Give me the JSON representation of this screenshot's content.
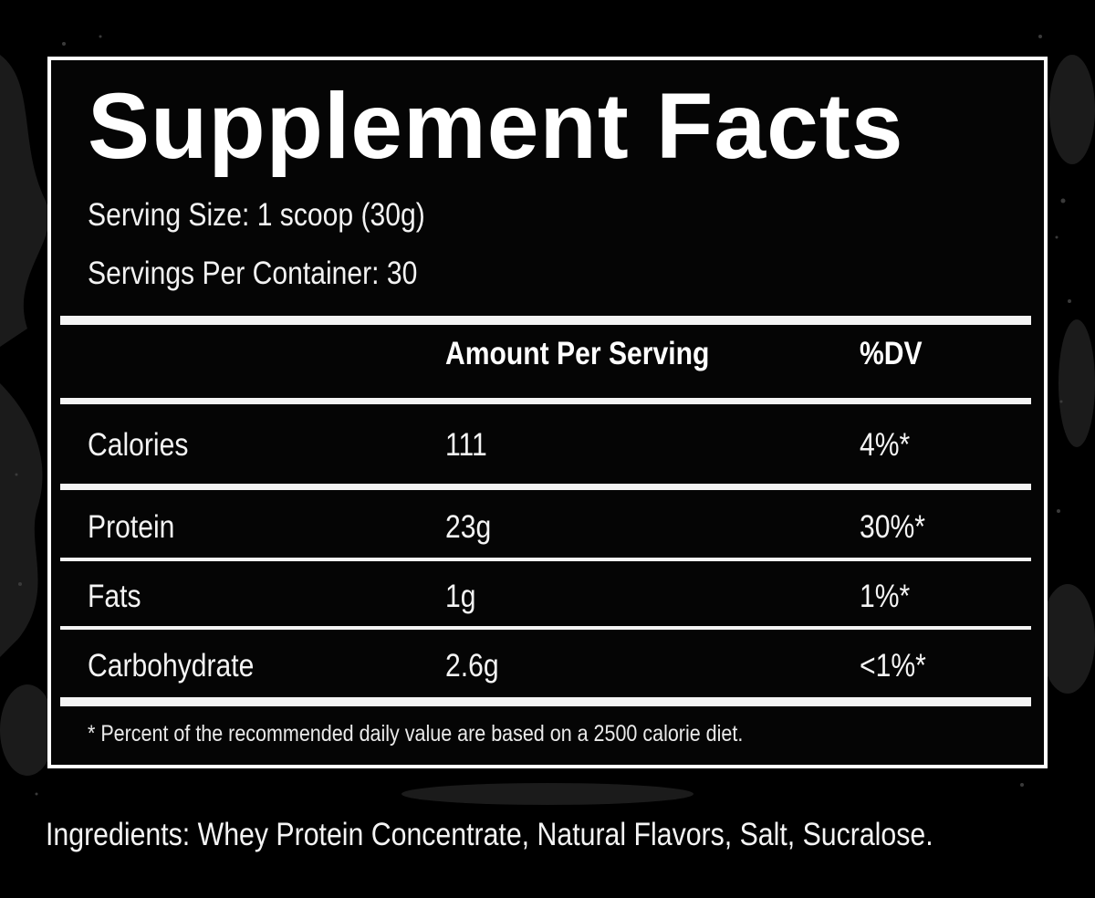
{
  "title": "Supplement Facts",
  "serving_size": "Serving Size: 1 scoop (30g)",
  "servings_per_container": "Servings Per Container: 30",
  "table": {
    "headers": {
      "name": "",
      "amount": "Amount Per Serving",
      "dv": "%DV"
    },
    "rows": [
      {
        "name": "Calories",
        "amount": "111",
        "dv": "4%*"
      },
      {
        "name": "Protein",
        "amount": "23g",
        "dv": "30%*"
      },
      {
        "name": "Fats",
        "amount": "1g",
        "dv": "1%*"
      },
      {
        "name": "Carbohydrate",
        "amount": "2.6g",
        "dv": "<1%*"
      }
    ]
  },
  "footnote": "* Percent of the recommended daily value are based on a 2500 calorie diet.",
  "ingredients": "Ingredients: Whey Protein Concentrate, Natural Flavors, Salt, Sucralose.",
  "colors": {
    "background": "#000000",
    "text": "#ffffff",
    "texture": "#1c1c1c"
  }
}
